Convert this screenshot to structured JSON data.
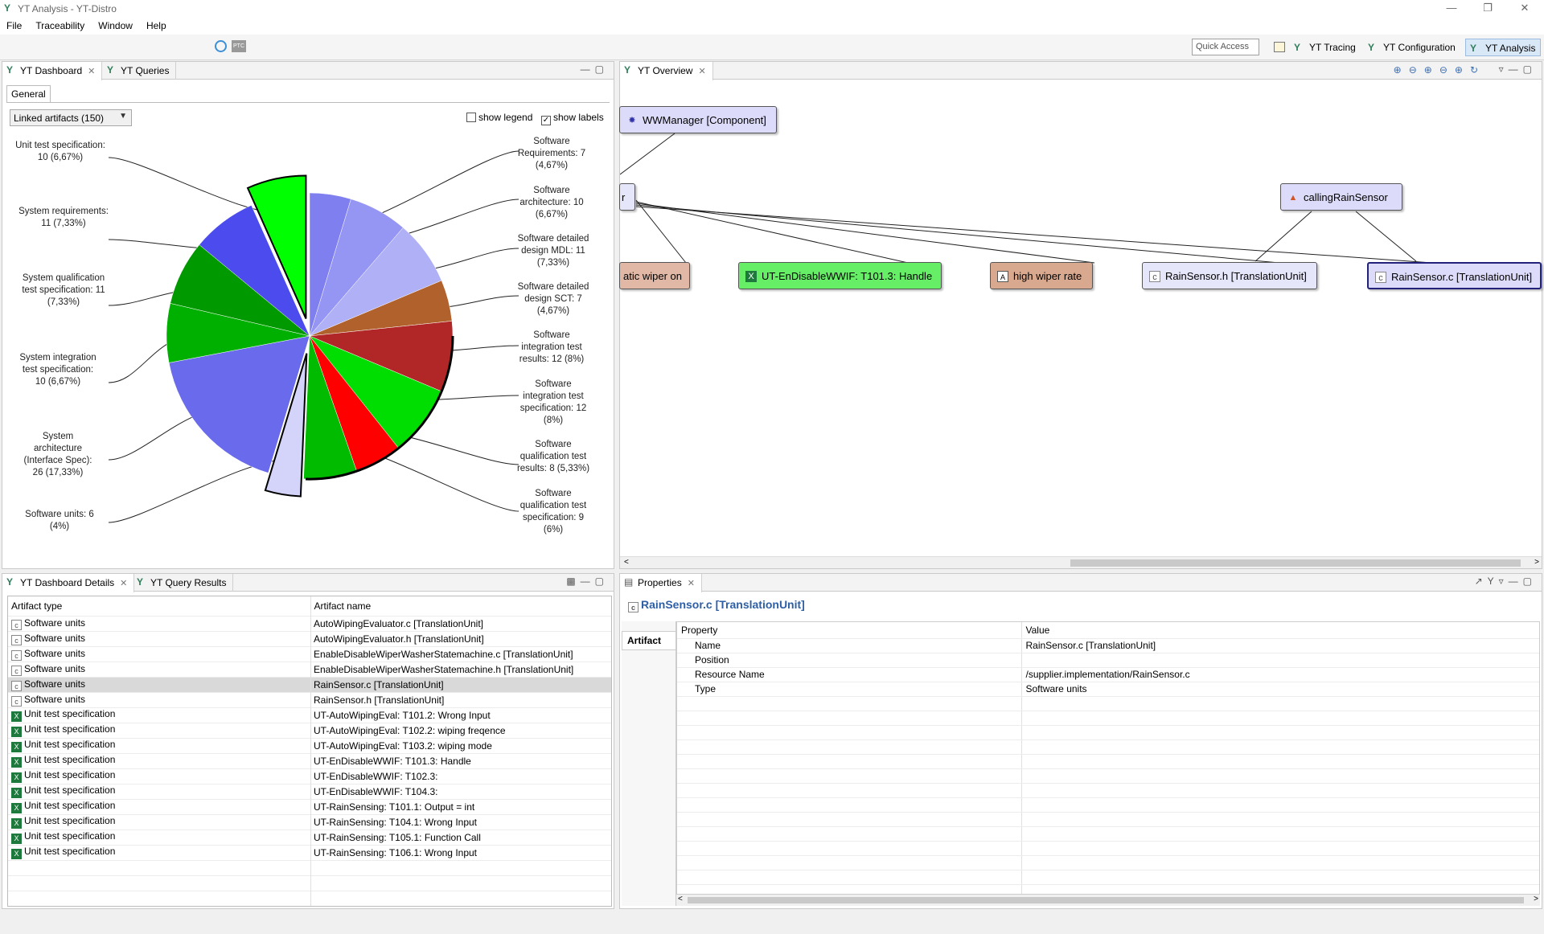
{
  "window": {
    "title": "YT Analysis - YT-Distro"
  },
  "menu": [
    "File",
    "Traceability",
    "Window",
    "Help"
  ],
  "toolbar": {
    "quick_access_placeholder": "Quick Access",
    "perspectives": [
      "YT Tracing",
      "YT Configuration",
      "YT Analysis"
    ],
    "ptc_badge": "PTC"
  },
  "dashboard": {
    "tabs": [
      "YT Dashboard",
      "YT Queries"
    ],
    "subtab": "General",
    "dropdown_value": "Linked artifacts (150)",
    "show_legend": "show legend",
    "show_labels": "show labels",
    "legend_checked": false,
    "labels_checked": true
  },
  "chart_data": {
    "type": "pie",
    "slices": [
      {
        "label": "Software Requirements: 7 (4,67%)",
        "value": 7,
        "color": "#7f7ff0"
      },
      {
        "label": "Software architecture: 10 (6,67%)",
        "value": 10,
        "color": "#9595f3"
      },
      {
        "label": "Software detailed design MDL: 11 (7,33%)",
        "value": 11,
        "color": "#b0b0f6"
      },
      {
        "label": "Software detailed design SCT: 7 (4,67%)",
        "value": 7,
        "color": "#b0612c"
      },
      {
        "label": "Software integration test results: 12 (8%)",
        "value": 12,
        "color": "#b12727"
      },
      {
        "label": "Software integration test specification: 12 (8%)",
        "value": 12,
        "color": "#00dd00"
      },
      {
        "label": "Software qualification test results: 8 (5,33%)",
        "value": 8,
        "color": "#ff0000"
      },
      {
        "label": "Software qualification test specification: 9 (6%)",
        "value": 9,
        "color": "#00bb00"
      },
      {
        "label": "Software units: 6 (4%)",
        "value": 6,
        "color": "#d4d4fb"
      },
      {
        "label": "System architecture (Interface Spec): 26 (17,33%)",
        "value": 26,
        "color": "#6a6aec"
      },
      {
        "label": "System integration test specification: 10 (6,67%)",
        "value": 10,
        "color": "#00b000"
      },
      {
        "label": "System qualification test specification: 11 (7,33%)",
        "value": 11,
        "color": "#009900"
      },
      {
        "label": "System requirements: 11 (7,33%)",
        "value": 11,
        "color": "#4b4bee"
      },
      {
        "label": "Unit test specification: 10 (6,67%)",
        "value": 10,
        "color": "#00ff00"
      }
    ]
  },
  "overview": {
    "tab": "YT Overview",
    "nodes": {
      "wwmanager": "WWManager [Component]",
      "partial": "r",
      "calling": "callingRainSensor",
      "wiper": "atic wiper on",
      "ut": "UT-EnDisableWWIF: T101.3: Handle",
      "high": "high wiper rate",
      "rsh": "RainSensor.h [TranslationUnit]",
      "rsc": "RainSensor.c [TranslationUnit]"
    }
  },
  "details": {
    "tabs": [
      "YT Dashboard Details",
      "YT Query Results"
    ],
    "columns": [
      "Artifact type",
      "Artifact name"
    ],
    "rows": [
      {
        "type": "Software units",
        "name": "AutoWipingEvaluator.c [TranslationUnit]",
        "icon": "unit"
      },
      {
        "type": "Software units",
        "name": "AutoWipingEvaluator.h [TranslationUnit]",
        "icon": "unit"
      },
      {
        "type": "Software units",
        "name": "EnableDisableWiperWasherStatemachine.c [TranslationUnit]",
        "icon": "unit"
      },
      {
        "type": "Software units",
        "name": "EnableDisableWiperWasherStatemachine.h [TranslationUnit]",
        "icon": "unit"
      },
      {
        "type": "Software units",
        "name": "RainSensor.c [TranslationUnit]",
        "icon": "unit",
        "selected": true
      },
      {
        "type": "Software units",
        "name": "RainSensor.h [TranslationUnit]",
        "icon": "unit"
      },
      {
        "type": "Unit test specification",
        "name": "UT-AutoWipingEval: T101.2: Wrong Input",
        "icon": "xls"
      },
      {
        "type": "Unit test specification",
        "name": "UT-AutoWipingEval: T102.2: wiping freqence",
        "icon": "xls"
      },
      {
        "type": "Unit test specification",
        "name": "UT-AutoWipingEval: T103.2: wiping mode",
        "icon": "xls"
      },
      {
        "type": "Unit test specification",
        "name": "UT-EnDisableWWIF: T101.3: Handle",
        "icon": "xls"
      },
      {
        "type": "Unit test specification",
        "name": "UT-EnDisableWWIF: T102.3:",
        "icon": "xls"
      },
      {
        "type": "Unit test specification",
        "name": "UT-EnDisableWWIF: T104.3:",
        "icon": "xls"
      },
      {
        "type": "Unit test specification",
        "name": "UT-RainSensing: T101.1: Output = int",
        "icon": "xls"
      },
      {
        "type": "Unit test specification",
        "name": "UT-RainSensing: T104.1: Wrong Input",
        "icon": "xls"
      },
      {
        "type": "Unit test specification",
        "name": "UT-RainSensing: T105.1: Function Call",
        "icon": "xls"
      },
      {
        "type": "Unit test specification",
        "name": "UT-RainSensing: T106.1: Wrong Input",
        "icon": "xls"
      }
    ]
  },
  "properties": {
    "tab": "Properties",
    "title": "RainSensor.c [TranslationUnit]",
    "side_tab": "Artifact",
    "columns": [
      "Property",
      "Value"
    ],
    "rows": [
      {
        "property": "Name",
        "value": "RainSensor.c [TranslationUnit]"
      },
      {
        "property": "Position",
        "value": ""
      },
      {
        "property": "Resource Name",
        "value": "/supplier.implementation/RainSensor.c"
      },
      {
        "property": "Type",
        "value": "Software units"
      }
    ]
  }
}
